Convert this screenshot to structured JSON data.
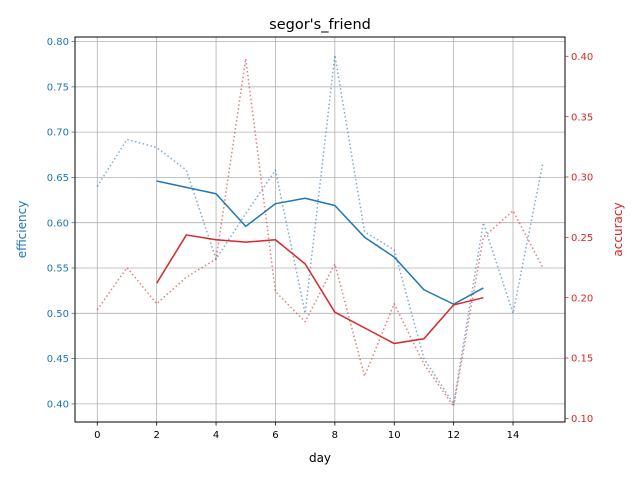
{
  "chart_data": {
    "type": "line",
    "title": "segor's_friend",
    "xlabel": "day",
    "ylabel_left": "efficiency",
    "ylabel_right": "accuracy",
    "xlim": [
      -0.75,
      15.75
    ],
    "ylim_left": [
      0.38,
      0.805
    ],
    "ylim_right": [
      0.097,
      0.416
    ],
    "x_ticks": [
      0,
      2,
      4,
      6,
      8,
      10,
      12,
      14
    ],
    "y_ticks_left": [
      0.4,
      0.45,
      0.5,
      0.55,
      0.6,
      0.65,
      0.7,
      0.75,
      0.8
    ],
    "y_ticks_right": [
      0.1,
      0.15,
      0.2,
      0.25,
      0.3,
      0.35,
      0.4
    ],
    "grid": true,
    "colors": {
      "left": "#1f77b4",
      "right": "#d62728"
    },
    "series": [
      {
        "axis": "left",
        "style": "dotted",
        "color": "#1f77b4",
        "x": [
          0,
          1,
          2,
          3,
          4,
          5,
          6,
          7,
          8,
          9,
          10,
          11,
          12,
          13,
          14,
          15
        ],
        "y": [
          0.64,
          0.692,
          0.683,
          0.658,
          0.56,
          0.61,
          0.658,
          0.5,
          0.785,
          0.59,
          0.57,
          0.45,
          0.4,
          0.6,
          0.5,
          0.665
        ]
      },
      {
        "axis": "left",
        "style": "solid",
        "color": "#1f77b4",
        "x": [
          2,
          3,
          4,
          5,
          6,
          7,
          8,
          9,
          10,
          11,
          12,
          13
        ],
        "y": [
          0.646,
          0.639,
          0.632,
          0.596,
          0.621,
          0.627,
          0.619,
          0.584,
          0.562,
          0.526,
          0.51,
          0.528
        ]
      },
      {
        "axis": "right",
        "style": "dotted",
        "color": "#d62728",
        "x": [
          0,
          1,
          2,
          3,
          4,
          5,
          6,
          7,
          8,
          9,
          10,
          11,
          12,
          13,
          14,
          15
        ],
        "y": [
          0.19,
          0.225,
          0.195,
          0.217,
          0.232,
          0.398,
          0.205,
          0.18,
          0.228,
          0.135,
          0.195,
          0.145,
          0.11,
          0.25,
          0.272,
          0.225
        ]
      },
      {
        "axis": "right",
        "style": "solid",
        "color": "#d62728",
        "x": [
          2,
          3,
          4,
          5,
          6,
          7,
          8,
          9,
          10,
          11,
          12,
          13
        ],
        "y": [
          0.212,
          0.252,
          0.248,
          0.246,
          0.248,
          0.228,
          0.188,
          0.175,
          0.162,
          0.166,
          0.194,
          0.2
        ]
      }
    ]
  }
}
